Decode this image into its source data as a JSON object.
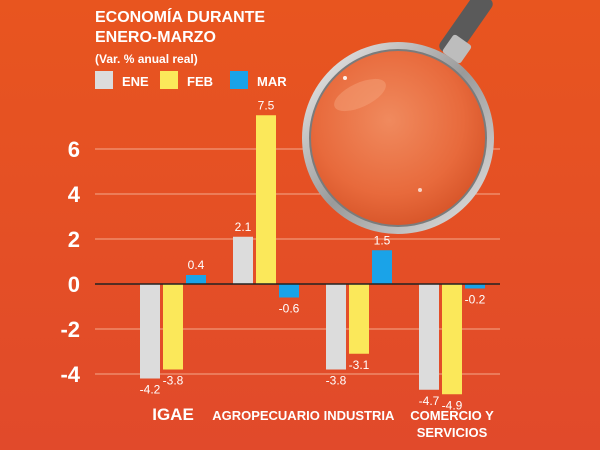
{
  "chart_data": {
    "type": "bar",
    "title_lines": [
      "ECONOMÍA DURANTE",
      "ENERO-MARZO"
    ],
    "subtitle": "(Var. % anual real)",
    "categories": [
      {
        "lines": [
          "IGAE"
        ],
        "big": true
      },
      {
        "lines": [
          "AGROPECUARIO"
        ],
        "big": false
      },
      {
        "lines": [
          "INDUSTRIA"
        ],
        "big": false
      },
      {
        "lines": [
          "COMERCIO Y",
          "SERVICIOS"
        ],
        "big": false
      }
    ],
    "series": [
      {
        "name": "ENE",
        "color": "#dcdcdc",
        "values": [
          -4.2,
          2.1,
          -3.8,
          -4.7
        ],
        "labels": [
          "-4.2",
          "2.1",
          "-3.8",
          "-4.7"
        ]
      },
      {
        "name": "FEB",
        "color": "#fbe85a",
        "values": [
          -3.8,
          7.5,
          -3.1,
          -4.9
        ],
        "labels": [
          "-3.8",
          "7.5",
          "-3.1",
          "-4.9"
        ]
      },
      {
        "name": "MAR",
        "color": "#1aa3e8",
        "values": [
          0.4,
          -0.6,
          1.5,
          -0.2
        ],
        "labels": [
          "0.4",
          "-0.6",
          "1.5",
          "-0.2"
        ]
      }
    ],
    "yticks": [
      6,
      4,
      2,
      0,
      -2,
      -4
    ],
    "ytick_labels": [
      "6",
      "4",
      "2",
      "0",
      "-2",
      "-4"
    ],
    "ylim": [
      -5,
      8
    ],
    "grid": true,
    "legend_placement": "top-left",
    "colors": {
      "background_top": "#e8531e",
      "background_bottom": "#e24a2a",
      "text": "#ffffff",
      "zero_line": "#222222"
    },
    "decoration": "magnifying-glass-icon"
  }
}
